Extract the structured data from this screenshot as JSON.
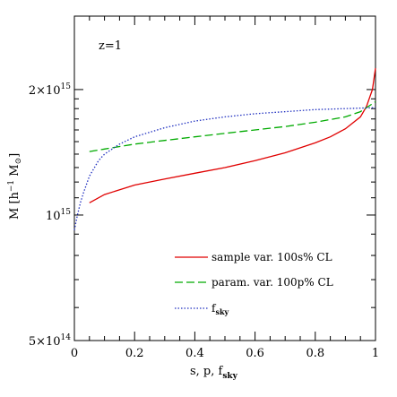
{
  "chart_data": {
    "type": "line",
    "annotation": "z=1",
    "xlabel": "s, p, f",
    "xlabel_sub": "sky",
    "ylabel": "M [h",
    "ylabel_sup": "−1",
    "ylabel_rest": " M",
    "ylabel_sub": "⊙",
    "ylabel_close": "]",
    "yscale": "log",
    "xlim": [
      0,
      1
    ],
    "ylim": [
      500000000000000,
      3000000000000000
    ],
    "xticks": [
      {
        "value": 0,
        "label": "0"
      },
      {
        "value": 0.2,
        "label": "0.2"
      },
      {
        "value": 0.4,
        "label": "0.4"
      },
      {
        "value": 0.6,
        "label": "0.6"
      },
      {
        "value": 0.8,
        "label": "0.8"
      },
      {
        "value": 1,
        "label": "1"
      }
    ],
    "yticks": [
      {
        "value": 500000000000000,
        "base": "5×10",
        "exp": "14"
      },
      {
        "value": 1000000000000000,
        "base": "10",
        "exp": "15"
      },
      {
        "value": 2000000000000000,
        "base": "2×10",
        "exp": "15"
      }
    ],
    "series": [
      {
        "name": "sample var. 100s% CL",
        "color": "#e00000",
        "dash": "solid",
        "x": [
          0.05,
          0.1,
          0.2,
          0.3,
          0.4,
          0.5,
          0.6,
          0.7,
          0.8,
          0.85,
          0.9,
          0.95,
          0.97,
          0.99,
          1.0
        ],
        "y": [
          1070000000000000.0,
          1120000000000000.0,
          1180000000000000.0,
          1220000000000000.0,
          1260000000000000.0,
          1300000000000000.0,
          1350000000000000.0,
          1410000000000000.0,
          1490000000000000.0,
          1540000000000000.0,
          1610000000000000.0,
          1720000000000000.0,
          1820000000000000.0,
          2000000000000000.0,
          2250000000000000.0
        ]
      },
      {
        "name": "param. var. 100p% CL",
        "color": "#00aa00",
        "dash": "dashed",
        "x": [
          0.05,
          0.1,
          0.2,
          0.3,
          0.4,
          0.5,
          0.6,
          0.7,
          0.8,
          0.9,
          0.95,
          1.0
        ],
        "y": [
          1420000000000000.0,
          1440000000000000.0,
          1480000000000000.0,
          1510000000000000.0,
          1540000000000000.0,
          1570000000000000.0,
          1600000000000000.0,
          1630000000000000.0,
          1670000000000000.0,
          1720000000000000.0,
          1770000000000000.0,
          1870000000000000.0
        ]
      },
      {
        "name": "f",
        "name_sub": "sky",
        "color": "#2030c0",
        "dash": "dotted",
        "x": [
          0.0,
          0.005,
          0.01,
          0.02,
          0.03,
          0.05,
          0.08,
          0.1,
          0.15,
          0.2,
          0.3,
          0.4,
          0.5,
          0.6,
          0.7,
          0.8,
          0.9,
          1.0
        ],
        "y": [
          920000000000000.0,
          960000000000000.0,
          1000000000000000.0,
          1070000000000000.0,
          1130000000000000.0,
          1240000000000000.0,
          1350000000000000.0,
          1400000000000000.0,
          1480000000000000.0,
          1540000000000000.0,
          1620000000000000.0,
          1680000000000000.0,
          1720000000000000.0,
          1750000000000000.0,
          1770000000000000.0,
          1790000000000000.0,
          1800000000000000.0,
          1810000000000000.0
        ]
      }
    ],
    "legend_position": "bottom-right"
  }
}
